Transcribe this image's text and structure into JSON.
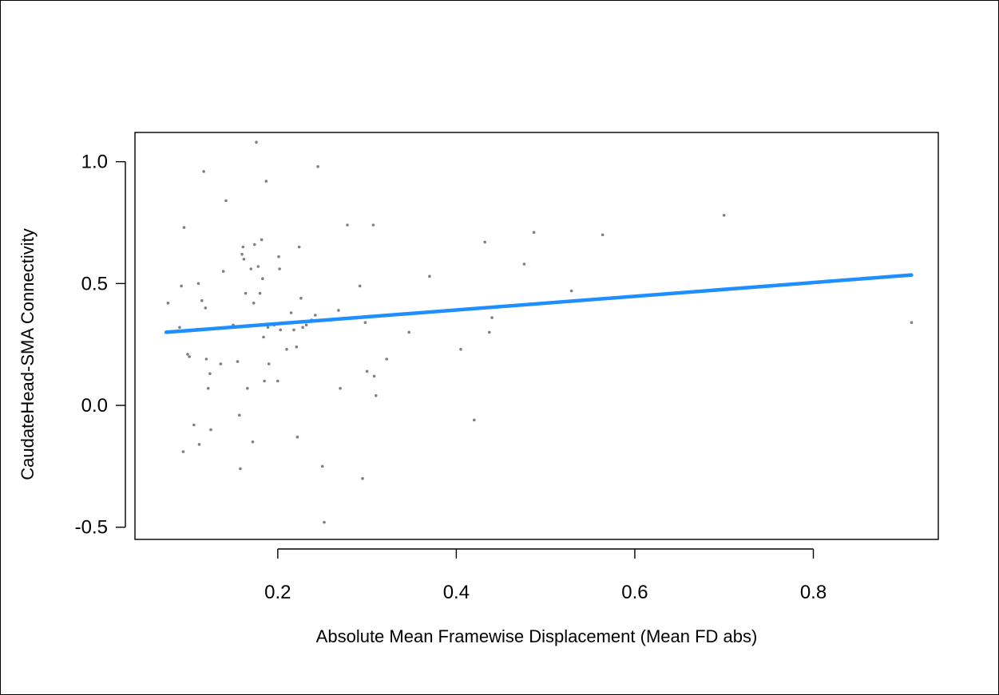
{
  "chart_data": {
    "type": "scatter",
    "xlabel": "Absolute Mean Framewise Displacement (Mean FD abs)",
    "ylabel": "CaudateHead-SMA Connectivity",
    "xlim": [
      0.04,
      0.94
    ],
    "ylim": [
      -0.55,
      1.12
    ],
    "xticks": [
      0.2,
      0.4,
      0.6,
      0.8
    ],
    "yticks": [
      -0.5,
      0.0,
      0.5,
      1.0
    ],
    "xtick_labels": [
      "0.2",
      "0.4",
      "0.6",
      "0.8"
    ],
    "ytick_labels": [
      "-0.5",
      "0.0",
      "0.5",
      "1.0"
    ],
    "grid": false,
    "point_color": "#808080",
    "line_color": "#1f8fff",
    "regression_line": {
      "x": [
        0.075,
        0.91
      ],
      "y": [
        0.3,
        0.535
      ]
    },
    "points": [
      {
        "x": 0.077,
        "y": 0.42
      },
      {
        "x": 0.09,
        "y": 0.32
      },
      {
        "x": 0.092,
        "y": 0.49
      },
      {
        "x": 0.095,
        "y": 0.73
      },
      {
        "x": 0.094,
        "y": -0.19
      },
      {
        "x": 0.099,
        "y": 0.21
      },
      {
        "x": 0.101,
        "y": 0.2
      },
      {
        "x": 0.106,
        "y": -0.08
      },
      {
        "x": 0.111,
        "y": 0.5
      },
      {
        "x": 0.112,
        "y": -0.16
      },
      {
        "x": 0.115,
        "y": 0.43
      },
      {
        "x": 0.117,
        "y": 0.96
      },
      {
        "x": 0.119,
        "y": 0.4
      },
      {
        "x": 0.12,
        "y": 0.19
      },
      {
        "x": 0.122,
        "y": 0.07
      },
      {
        "x": 0.124,
        "y": 0.13
      },
      {
        "x": 0.125,
        "y": -0.1
      },
      {
        "x": 0.136,
        "y": 0.17
      },
      {
        "x": 0.139,
        "y": 0.55
      },
      {
        "x": 0.142,
        "y": 0.84
      },
      {
        "x": 0.144,
        "y": 0.32
      },
      {
        "x": 0.15,
        "y": 0.33
      },
      {
        "x": 0.155,
        "y": 0.18
      },
      {
        "x": 0.157,
        "y": -0.04
      },
      {
        "x": 0.158,
        "y": -0.26
      },
      {
        "x": 0.16,
        "y": 0.62
      },
      {
        "x": 0.161,
        "y": 0.65
      },
      {
        "x": 0.162,
        "y": 0.6
      },
      {
        "x": 0.164,
        "y": 0.46
      },
      {
        "x": 0.166,
        "y": 0.07
      },
      {
        "x": 0.17,
        "y": 0.56
      },
      {
        "x": 0.172,
        "y": -0.15
      },
      {
        "x": 0.173,
        "y": 0.42
      },
      {
        "x": 0.174,
        "y": 0.66
      },
      {
        "x": 0.176,
        "y": 1.08
      },
      {
        "x": 0.178,
        "y": 0.57
      },
      {
        "x": 0.18,
        "y": 0.46
      },
      {
        "x": 0.182,
        "y": 0.68
      },
      {
        "x": 0.183,
        "y": 0.52
      },
      {
        "x": 0.184,
        "y": 0.28
      },
      {
        "x": 0.185,
        "y": 0.1
      },
      {
        "x": 0.187,
        "y": 0.92
      },
      {
        "x": 0.189,
        "y": 0.32
      },
      {
        "x": 0.19,
        "y": 0.17
      },
      {
        "x": 0.196,
        "y": 0.33
      },
      {
        "x": 0.2,
        "y": 0.1
      },
      {
        "x": 0.201,
        "y": 0.61
      },
      {
        "x": 0.202,
        "y": 0.56
      },
      {
        "x": 0.203,
        "y": 0.31
      },
      {
        "x": 0.21,
        "y": 0.23
      },
      {
        "x": 0.215,
        "y": 0.38
      },
      {
        "x": 0.218,
        "y": 0.31
      },
      {
        "x": 0.221,
        "y": 0.24
      },
      {
        "x": 0.222,
        "y": -0.13
      },
      {
        "x": 0.224,
        "y": 0.65
      },
      {
        "x": 0.226,
        "y": 0.44
      },
      {
        "x": 0.228,
        "y": 0.32
      },
      {
        "x": 0.232,
        "y": 0.33
      },
      {
        "x": 0.238,
        "y": 0.35
      },
      {
        "x": 0.242,
        "y": 0.37
      },
      {
        "x": 0.245,
        "y": 0.98
      },
      {
        "x": 0.25,
        "y": -0.25
      },
      {
        "x": 0.252,
        "y": -0.48
      },
      {
        "x": 0.268,
        "y": 0.39
      },
      {
        "x": 0.27,
        "y": 0.07
      },
      {
        "x": 0.278,
        "y": 0.74
      },
      {
        "x": 0.292,
        "y": 0.49
      },
      {
        "x": 0.295,
        "y": -0.3
      },
      {
        "x": 0.298,
        "y": 0.34
      },
      {
        "x": 0.3,
        "y": 0.14
      },
      {
        "x": 0.307,
        "y": 0.74
      },
      {
        "x": 0.308,
        "y": 0.12
      },
      {
        "x": 0.31,
        "y": 0.04
      },
      {
        "x": 0.322,
        "y": 0.19
      },
      {
        "x": 0.347,
        "y": 0.3
      },
      {
        "x": 0.37,
        "y": 0.53
      },
      {
        "x": 0.405,
        "y": 0.23
      },
      {
        "x": 0.42,
        "y": -0.06
      },
      {
        "x": 0.432,
        "y": 0.67
      },
      {
        "x": 0.437,
        "y": 0.3
      },
      {
        "x": 0.44,
        "y": 0.36
      },
      {
        "x": 0.476,
        "y": 0.58
      },
      {
        "x": 0.487,
        "y": 0.71
      },
      {
        "x": 0.529,
        "y": 0.47
      },
      {
        "x": 0.564,
        "y": 0.7
      },
      {
        "x": 0.7,
        "y": 0.78
      },
      {
        "x": 0.91,
        "y": 0.34
      }
    ]
  }
}
